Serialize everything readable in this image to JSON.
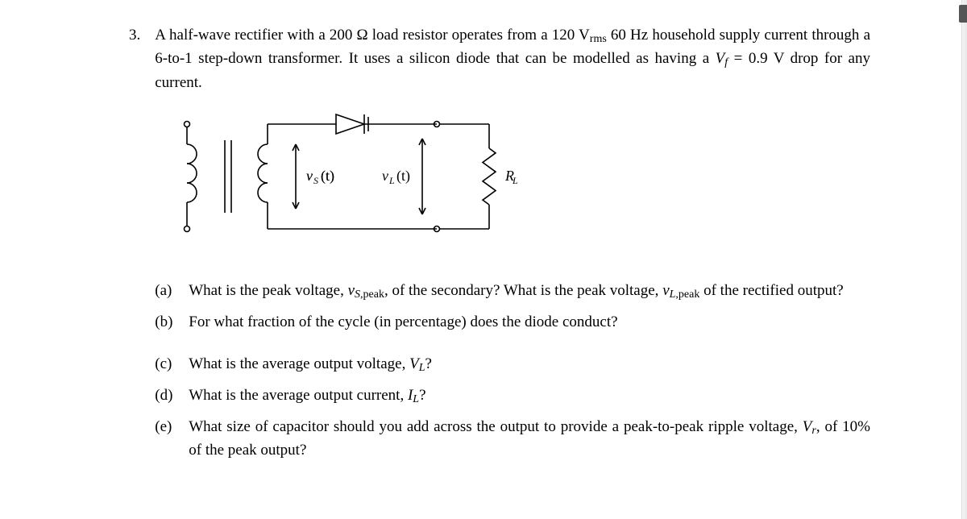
{
  "problem": {
    "number": "3.",
    "prompt_html": "A half-wave rectifier with a 200 Ω load resistor operates from a 120 V<sub class='sub'>rms</sub> 60 Hz household supply current through a 6-to-1 step-down transformer. It uses a silicon diode that can be modelled as having a <span class='italic'>V<sub class='sub'>f</sub></span> = 0.9 V drop for any current."
  },
  "diagram": {
    "labels": {
      "vs": "v",
      "vs_sub": "S",
      "vs_arg": "(t)",
      "vl": "v",
      "vl_sub": "L",
      "vl_arg": "(t)",
      "rl": "R",
      "rl_sub": "L"
    },
    "stroke": "#000000",
    "stroke_width": 1.6,
    "font_size_label": 18,
    "font_size_sub": 12
  },
  "questions": [
    {
      "label": "(a)",
      "text_html": "What is the peak voltage, <span class='italic'>v</span><sub class='sub italic'>S</sub><sub class='sub'>,peak</sub>, of the secondary? What is the peak voltage, <span class='italic'>v</span><sub class='sub italic'>L</sub><sub class='sub'>,peak</sub> of the rectified output?"
    },
    {
      "label": "(b)",
      "text_html": "For what fraction of the cycle (in percentage) does the diode conduct?"
    },
    {
      "label": "(c)",
      "text_html": "What is the average output voltage, <span class='italic'>V<sub class='sub'>L</sub></span>?"
    },
    {
      "label": "(d)",
      "text_html": "What is the average output current, <span class='italic'>I<sub class='sub'>L</sub></span>?"
    },
    {
      "label": "(e)",
      "text_html": "What size of capacitor should you add across the output to provide a peak-to-peak ripple voltage, <span class='italic'>V<sub class='sub'>r</sub></span>, of 10% of the peak output?"
    }
  ]
}
